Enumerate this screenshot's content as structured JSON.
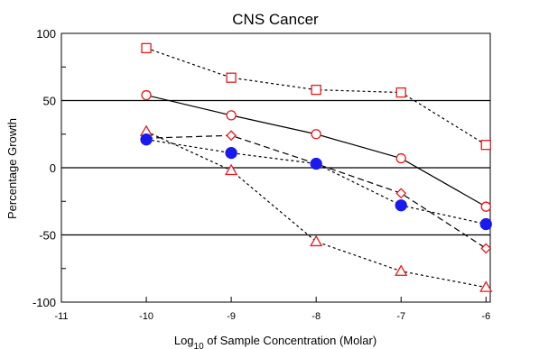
{
  "chart_data": {
    "type": "line",
    "title": "CNS Cancer",
    "xlabel": {
      "prefix": "Log",
      "sub": "10",
      "suffix": " of Sample Concentration (Molar)"
    },
    "ylabel": "Percentage Growth",
    "xlim": [
      -11,
      -5.95
    ],
    "ylim": [
      -100,
      100
    ],
    "x_ticks": [
      -11,
      -10,
      -9,
      -8,
      -7,
      -6
    ],
    "x_tick_labels": [
      "-11",
      "-10",
      "-9",
      "-8",
      "-7",
      "-6"
    ],
    "y_ticks": [
      100,
      50,
      0,
      -50,
      -100
    ],
    "y_tick_labels": [
      "100",
      "50",
      "0",
      "-50",
      "-100"
    ],
    "y_minor_ticks": [
      75,
      25,
      -25,
      -75
    ],
    "reference_lines": [
      50,
      0,
      -50
    ],
    "grid": false,
    "series": [
      {
        "marker": "square",
        "color": "#e8191c",
        "line": "dotted",
        "x": [
          -10,
          -9,
          -8,
          -7,
          -6
        ],
        "y": [
          89,
          67,
          58,
          56,
          17
        ]
      },
      {
        "marker": "circle",
        "color": "#e8191c",
        "line": "solid",
        "x": [
          -10,
          -9,
          -8,
          -7,
          -6
        ],
        "y": [
          54,
          39,
          25,
          7,
          -29
        ]
      },
      {
        "marker": "diamond",
        "color": "#e8191c",
        "line": "dashed",
        "x": [
          -10,
          -9,
          -8,
          -7,
          -6
        ],
        "y": [
          22,
          24,
          3,
          -19,
          -60
        ]
      },
      {
        "marker": "triangle",
        "color": "#e8191c",
        "line": "dotted",
        "x": [
          -10,
          -9,
          -8,
          -7,
          -6
        ],
        "y": [
          27,
          -2,
          -55,
          -77,
          -89
        ]
      },
      {
        "marker": "dot",
        "color": "#1a1aef",
        "line": "dotted",
        "x": [
          -10,
          -9,
          -8,
          -7,
          -6
        ],
        "y": [
          21,
          11,
          3,
          -28,
          -42
        ]
      }
    ]
  }
}
